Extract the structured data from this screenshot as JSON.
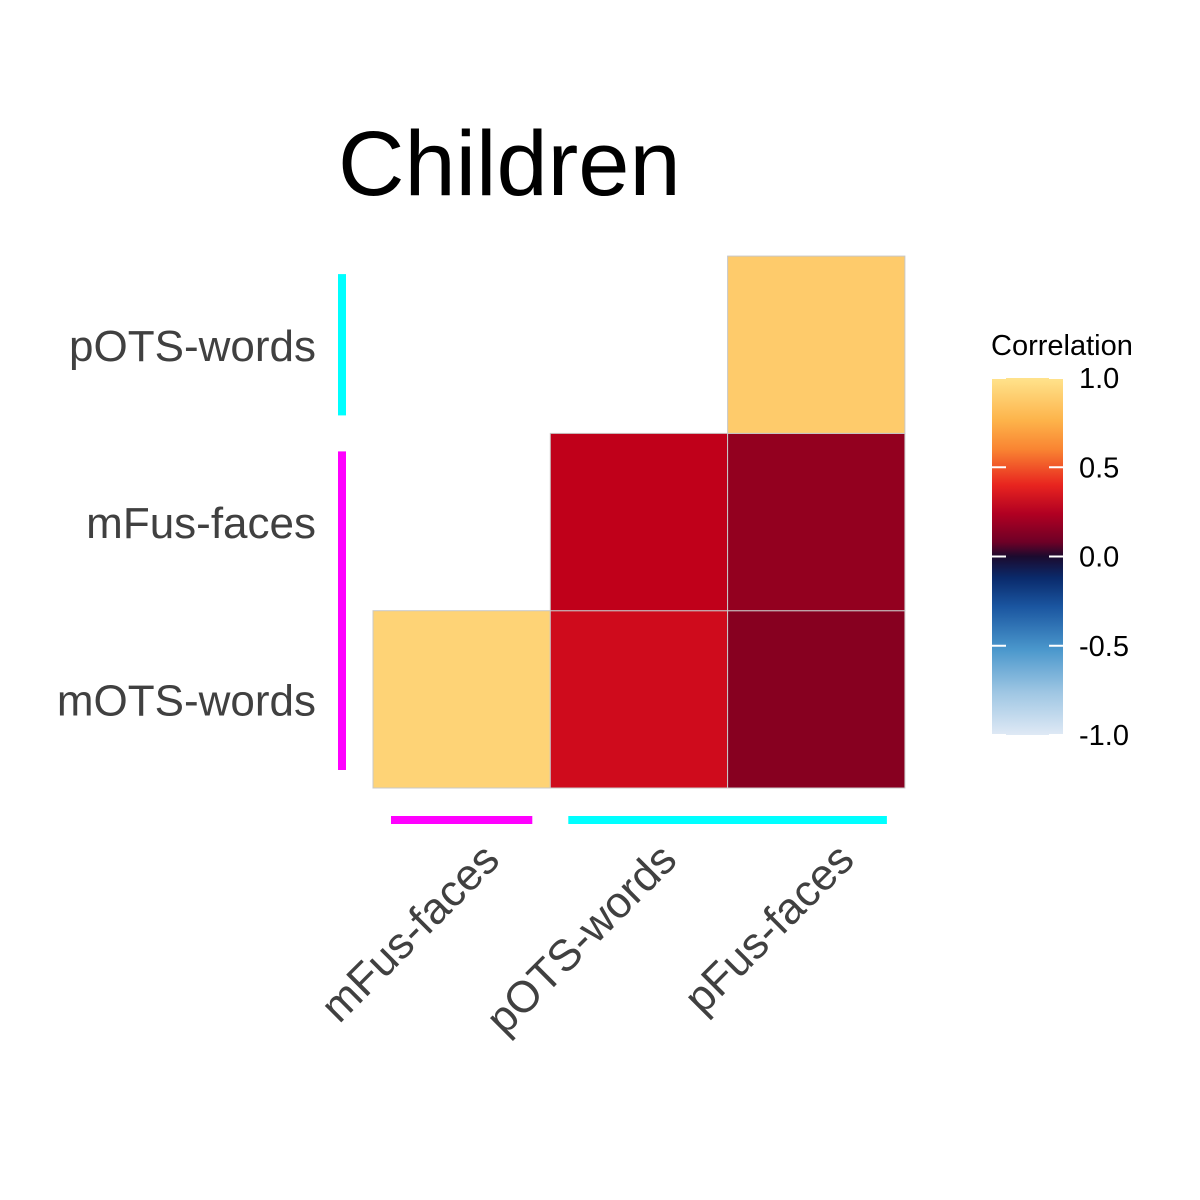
{
  "chart_data": {
    "type": "heatmap",
    "title": "Children",
    "x_categories": [
      "mFus-faces",
      "pOTS-words",
      "pFus-faces"
    ],
    "y_categories": [
      "mOTS-words",
      "mFus-faces",
      "pOTS-words"
    ],
    "cells": [
      {
        "x": "mFus-faces",
        "y": "mOTS-words",
        "value": 0.92
      },
      {
        "x": "pOTS-words",
        "y": "mOTS-words",
        "value": 0.33
      },
      {
        "x": "pFus-faces",
        "y": "mOTS-words",
        "value": 0.15
      },
      {
        "x": "pOTS-words",
        "y": "mFus-faces",
        "value": 0.29
      },
      {
        "x": "pFus-faces",
        "y": "mFus-faces",
        "value": 0.18
      },
      {
        "x": "pFus-faces",
        "y": "pOTS-words",
        "value": 0.88
      }
    ],
    "legend": {
      "title": "Correlation",
      "ticks": [
        "1.0",
        "0.5",
        "0.0",
        "-0.5",
        "-1.0"
      ],
      "range": [
        -1.0,
        1.0
      ],
      "placement": "right"
    },
    "x_group_bars": [
      {
        "categories": [
          "mFus-faces"
        ],
        "color": "#ff00ff"
      },
      {
        "categories": [
          "pOTS-words",
          "pFus-faces"
        ],
        "color": "#00ffff"
      }
    ],
    "y_group_bars": [
      {
        "categories": [
          "pOTS-words"
        ],
        "color": "#00ffff"
      },
      {
        "categories": [
          "mFus-faces",
          "mOTS-words"
        ],
        "color": "#ff00ff"
      }
    ]
  }
}
